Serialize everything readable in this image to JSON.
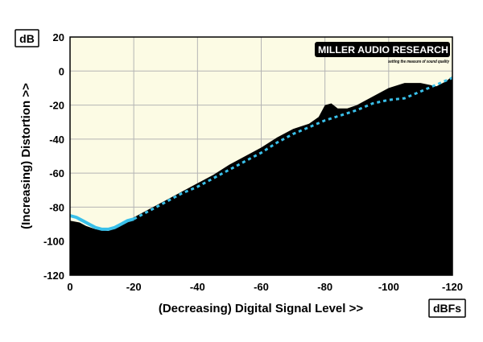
{
  "chart_data": {
    "type": "area",
    "y_unit": "dB",
    "x_unit": "dBFs",
    "xlabel": "(Decreasing) Digital Signal Level >>",
    "ylabel": "(Increasing) Distortion >>",
    "xlim": [
      0,
      -120
    ],
    "ylim": [
      -120,
      20
    ],
    "x_ticks": [
      0,
      -20,
      -40,
      -60,
      -80,
      -100,
      -120
    ],
    "y_ticks": [
      20,
      0,
      -20,
      -40,
      -60,
      -80,
      -100,
      -120
    ],
    "grid": true,
    "series": [
      {
        "style": "filled area",
        "color": "#000000",
        "x": [
          0,
          -3,
          -5,
          -8,
          -12,
          -15,
          -18,
          -20,
          -25,
          -30,
          -35,
          -40,
          -45,
          -50,
          -55,
          -60,
          -65,
          -70,
          -75,
          -78,
          -80,
          -82,
          -84,
          -87,
          -90,
          -95,
          -100,
          -105,
          -110,
          -115,
          -118,
          -120
        ],
        "y": [
          -88,
          -89,
          -91,
          -93,
          -94,
          -92,
          -89,
          -86,
          -81,
          -76,
          -71,
          -66,
          -61,
          -55,
          -50,
          -45,
          -39,
          -34,
          -31,
          -27,
          -20,
          -19,
          -22,
          -22,
          -20,
          -15,
          -10,
          -7,
          -7,
          -9,
          -6,
          -3
        ]
      },
      {
        "style": "dashed line",
        "color": "#39c0ea",
        "x": [
          -20,
          -25,
          -30,
          -35,
          -40,
          -45,
          -50,
          -55,
          -60,
          -65,
          -70,
          -75,
          -80,
          -85,
          -90,
          -95,
          -100,
          -105,
          -110,
          -115,
          -120
        ],
        "y": [
          -87,
          -82,
          -77,
          -72,
          -68,
          -63,
          -58,
          -53,
          -48,
          -42,
          -37,
          -33,
          -29,
          -26,
          -23,
          -19,
          -17,
          -16,
          -12,
          -8,
          -4
        ]
      },
      {
        "style": "solid line",
        "color": "#39c0ea",
        "x": [
          0,
          -2,
          -4,
          -6,
          -8,
          -10,
          -12,
          -14,
          -16,
          -18,
          -20
        ],
        "y": [
          -85,
          -86,
          -88,
          -90,
          -92,
          -93,
          -93,
          -92,
          -90,
          -88,
          -87
        ]
      }
    ]
  },
  "logo": {
    "name": "MILLER AUDIO RESEARCH",
    "tagline": "setting the measure of sound quality"
  },
  "colors": {
    "plot_background": "#fcfbe4",
    "grid": "#b4b4b4",
    "fill": "#000000",
    "trace": "#39c0ea"
  }
}
